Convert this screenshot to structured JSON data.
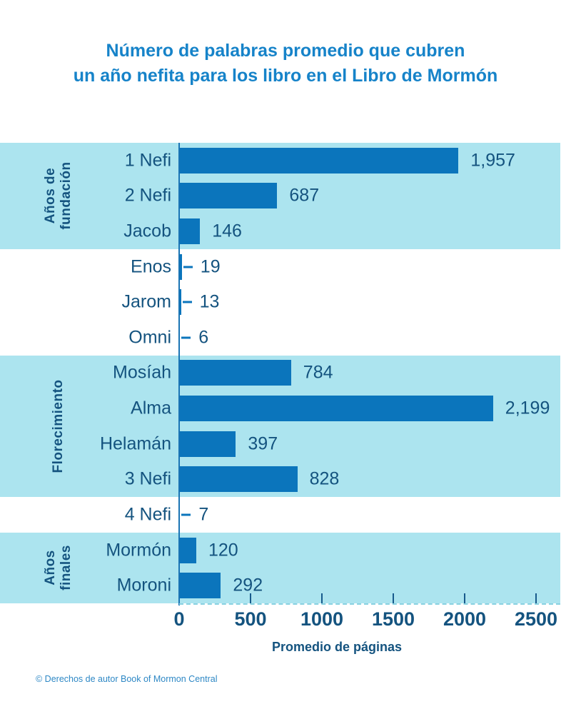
{
  "title": {
    "line1": "Número de palabras promedio que cubren",
    "line2": "un año nefita para los libro en el Libro de Mormón"
  },
  "colors": {
    "bar": "#0b75bc",
    "band": "#ace4ef",
    "dark_text": "#14537f",
    "title_blue": "#1683c9",
    "footer_blue": "#2e88c5"
  },
  "chart_data": {
    "type": "bar",
    "orientation": "horizontal",
    "title": "Número de palabras promedio que cubren un año nefita para los libro en el Libro de Mormón",
    "xlabel": "Promedio de páginas",
    "xlim": [
      0,
      2500
    ],
    "xticks": [
      0,
      500,
      1000,
      1500,
      2000,
      2500
    ],
    "xtick_labels": [
      "0",
      "500",
      "1000",
      "1500",
      "2000",
      "2500"
    ],
    "grid": false,
    "legend": "none",
    "groups": [
      {
        "label": "Años de fundación",
        "label_lines": "Años de\nfundación",
        "shaded": true,
        "books": [
          {
            "name": "1 Nefi",
            "value": 1957,
            "display": "1,957"
          },
          {
            "name": "2 Nefi",
            "value": 687,
            "display": "687"
          },
          {
            "name": "Jacob",
            "value": 146,
            "display": "146"
          }
        ]
      },
      {
        "label": "",
        "label_lines": "",
        "shaded": false,
        "books": [
          {
            "name": "Enos",
            "value": 19,
            "display": "19"
          },
          {
            "name": "Jarom",
            "value": 13,
            "display": "13"
          },
          {
            "name": "Omni",
            "value": 6,
            "display": "6"
          }
        ]
      },
      {
        "label": "Florecimiento",
        "label_lines": "Florecimiento",
        "shaded": true,
        "books": [
          {
            "name": "Mosíah",
            "value": 784,
            "display": "784"
          },
          {
            "name": "Alma",
            "value": 2199,
            "display": "2,199"
          },
          {
            "name": "Helamán",
            "value": 397,
            "display": "397"
          },
          {
            "name": "3 Nefi",
            "value": 828,
            "display": "828"
          }
        ]
      },
      {
        "label": "",
        "label_lines": "",
        "shaded": false,
        "books": [
          {
            "name": "4 Nefi",
            "value": 7,
            "display": "7"
          }
        ]
      },
      {
        "label": "Años finales",
        "label_lines": "Años\nfinales",
        "shaded": true,
        "books": [
          {
            "name": "Mormón",
            "value": 120,
            "display": "120"
          },
          {
            "name": "Moroni",
            "value": 292,
            "display": "292"
          }
        ]
      }
    ]
  },
  "footer": {
    "text": "© Derechos de autor Book of Mormon Central"
  }
}
